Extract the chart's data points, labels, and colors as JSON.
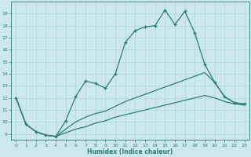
{
  "xlabel": "Humidex (Indice chaleur)",
  "background_color": "#cce8ec",
  "line_color": "#2d7d72",
  "grid_color": "#aed4d8",
  "ylim": [
    8.5,
    20.0
  ],
  "xlim": [
    -0.5,
    23.5
  ],
  "yticks": [
    9,
    10,
    11,
    12,
    13,
    14,
    15,
    16,
    17,
    18,
    19
  ],
  "xticks": [
    0,
    1,
    2,
    3,
    4,
    5,
    6,
    7,
    8,
    9,
    10,
    11,
    12,
    13,
    14,
    15,
    16,
    17,
    18,
    19,
    20,
    21,
    22,
    23
  ],
  "series": [
    {
      "x": [
        0,
        1,
        2,
        3,
        4,
        5,
        6,
        7,
        8,
        9,
        10,
        11,
        12,
        13,
        14,
        15,
        16,
        17,
        18,
        19,
        20,
        21,
        22,
        23
      ],
      "y": [
        12,
        9.8,
        9.2,
        8.9,
        8.8,
        10.1,
        12.1,
        13.4,
        13.2,
        12.8,
        14.0,
        16.6,
        17.6,
        17.9,
        18.0,
        19.3,
        18.1,
        19.2,
        17.4,
        14.8,
        13.3,
        12.1,
        11.6,
        11.5
      ],
      "marker": true
    },
    {
      "x": [
        0,
        1,
        2,
        3,
        4,
        5,
        6,
        7,
        8,
        9,
        10,
        11,
        12,
        13,
        14,
        15,
        16,
        17,
        18,
        19,
        20,
        21,
        22,
        23
      ],
      "y": [
        12,
        9.8,
        9.2,
        8.9,
        8.8,
        9.4,
        10.0,
        10.4,
        10.7,
        10.9,
        11.3,
        11.7,
        12.0,
        12.3,
        12.6,
        12.9,
        13.2,
        13.5,
        13.8,
        14.1,
        13.3,
        12.1,
        11.6,
        11.5
      ],
      "marker": false
    },
    {
      "x": [
        0,
        1,
        2,
        3,
        4,
        5,
        6,
        7,
        8,
        9,
        10,
        11,
        12,
        13,
        14,
        15,
        16,
        17,
        18,
        19,
        20,
        21,
        22,
        23
      ],
      "y": [
        12,
        9.8,
        9.2,
        8.9,
        8.8,
        9.1,
        9.4,
        9.6,
        9.9,
        10.1,
        10.4,
        10.6,
        10.8,
        11.0,
        11.2,
        11.4,
        11.6,
        11.8,
        12.0,
        12.2,
        12.0,
        11.7,
        11.5,
        11.4
      ],
      "marker": false
    }
  ]
}
